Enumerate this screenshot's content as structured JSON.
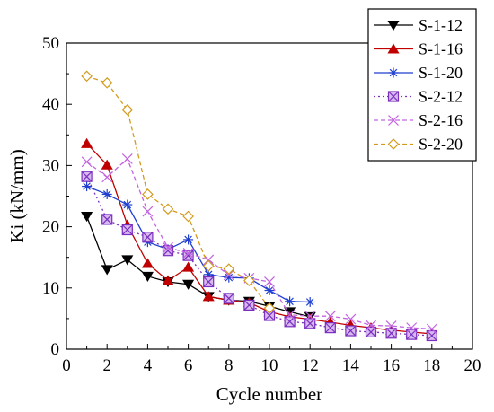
{
  "chart_data": {
    "type": "line",
    "title": "",
    "xlabel": "Cycle number",
    "ylabel": "Ki (kN/mm)",
    "xlim": [
      0,
      20
    ],
    "ylim": [
      0,
      50
    ],
    "xticks": [
      0,
      2,
      4,
      6,
      8,
      10,
      12,
      14,
      16,
      18,
      20
    ],
    "yticks": [
      0,
      10,
      20,
      30,
      40,
      50
    ],
    "grid": false,
    "legend_position": "top-right",
    "series": [
      {
        "name": "S-1-12",
        "color": "#000000",
        "line_style": "solid",
        "marker": "triangle-down",
        "marker_fill": "#000000",
        "x": [
          1,
          2,
          3,
          4,
          5,
          6,
          7,
          8,
          9,
          10,
          11,
          12
        ],
        "y": [
          21.7,
          13.0,
          14.6,
          11.9,
          11.0,
          10.6,
          8.6,
          8.0,
          7.8,
          7.0,
          6.1,
          5.3
        ]
      },
      {
        "name": "S-1-16",
        "color": "#c00000",
        "line_style": "solid",
        "marker": "triangle-up",
        "marker_fill": "#c00000",
        "x": [
          1,
          2,
          3,
          4,
          5,
          6,
          7,
          8,
          9,
          10,
          11,
          12,
          13,
          14,
          15,
          16,
          17,
          18
        ],
        "y": [
          33.6,
          30.1,
          20.3,
          14.0,
          11.2,
          13.4,
          8.6,
          8.0,
          7.6,
          6.1,
          5.3,
          4.9,
          4.4,
          3.9,
          3.5,
          3.1,
          2.8,
          2.5
        ]
      },
      {
        "name": "S-1-20",
        "color": "#1f3fd0",
        "line_style": "solid",
        "marker": "asterisk",
        "marker_fill": "none",
        "x": [
          1,
          2,
          3,
          4,
          5,
          6,
          7,
          8,
          9,
          10,
          11,
          12
        ],
        "y": [
          26.6,
          25.3,
          23.6,
          17.5,
          16.3,
          17.9,
          12.2,
          11.7,
          11.6,
          9.6,
          7.8,
          7.7
        ]
      },
      {
        "name": "S-2-12",
        "color": "#7a2fbf",
        "line_style": "dotted",
        "marker": "square-x",
        "marker_fill": "#d7b8ef",
        "x": [
          1,
          2,
          3,
          4,
          5,
          6,
          7,
          8,
          9,
          10,
          11,
          12,
          13,
          14,
          15,
          16,
          17,
          18
        ],
        "y": [
          28.2,
          21.2,
          19.5,
          18.3,
          16.1,
          15.3,
          11.0,
          8.3,
          7.2,
          5.5,
          4.5,
          4.2,
          3.5,
          3.0,
          2.8,
          2.6,
          2.4,
          2.2
        ]
      },
      {
        "name": "S-2-16",
        "color": "#c264e0",
        "line_style": "dashed",
        "marker": "x",
        "marker_fill": "none",
        "x": [
          1,
          2,
          3,
          4,
          5,
          6,
          7,
          8,
          9,
          10,
          11,
          12,
          13,
          14,
          15,
          16,
          17,
          18
        ],
        "y": [
          30.6,
          28.1,
          31.1,
          22.5,
          16.6,
          15.7,
          14.6,
          12.1,
          11.6,
          11.0,
          5.6,
          5.4,
          5.4,
          4.9,
          3.9,
          3.8,
          3.5,
          3.3
        ]
      },
      {
        "name": "S-2-20",
        "color": "#d39b1e",
        "line_style": "dashed",
        "marker": "diamond",
        "marker_fill": "#ffffff",
        "x": [
          1,
          2,
          3,
          4,
          5,
          6,
          7,
          8,
          9,
          10
        ],
        "y": [
          44.6,
          43.5,
          39.1,
          25.3,
          22.9,
          21.7,
          13.6,
          13.1,
          11.2,
          6.7
        ]
      }
    ]
  }
}
